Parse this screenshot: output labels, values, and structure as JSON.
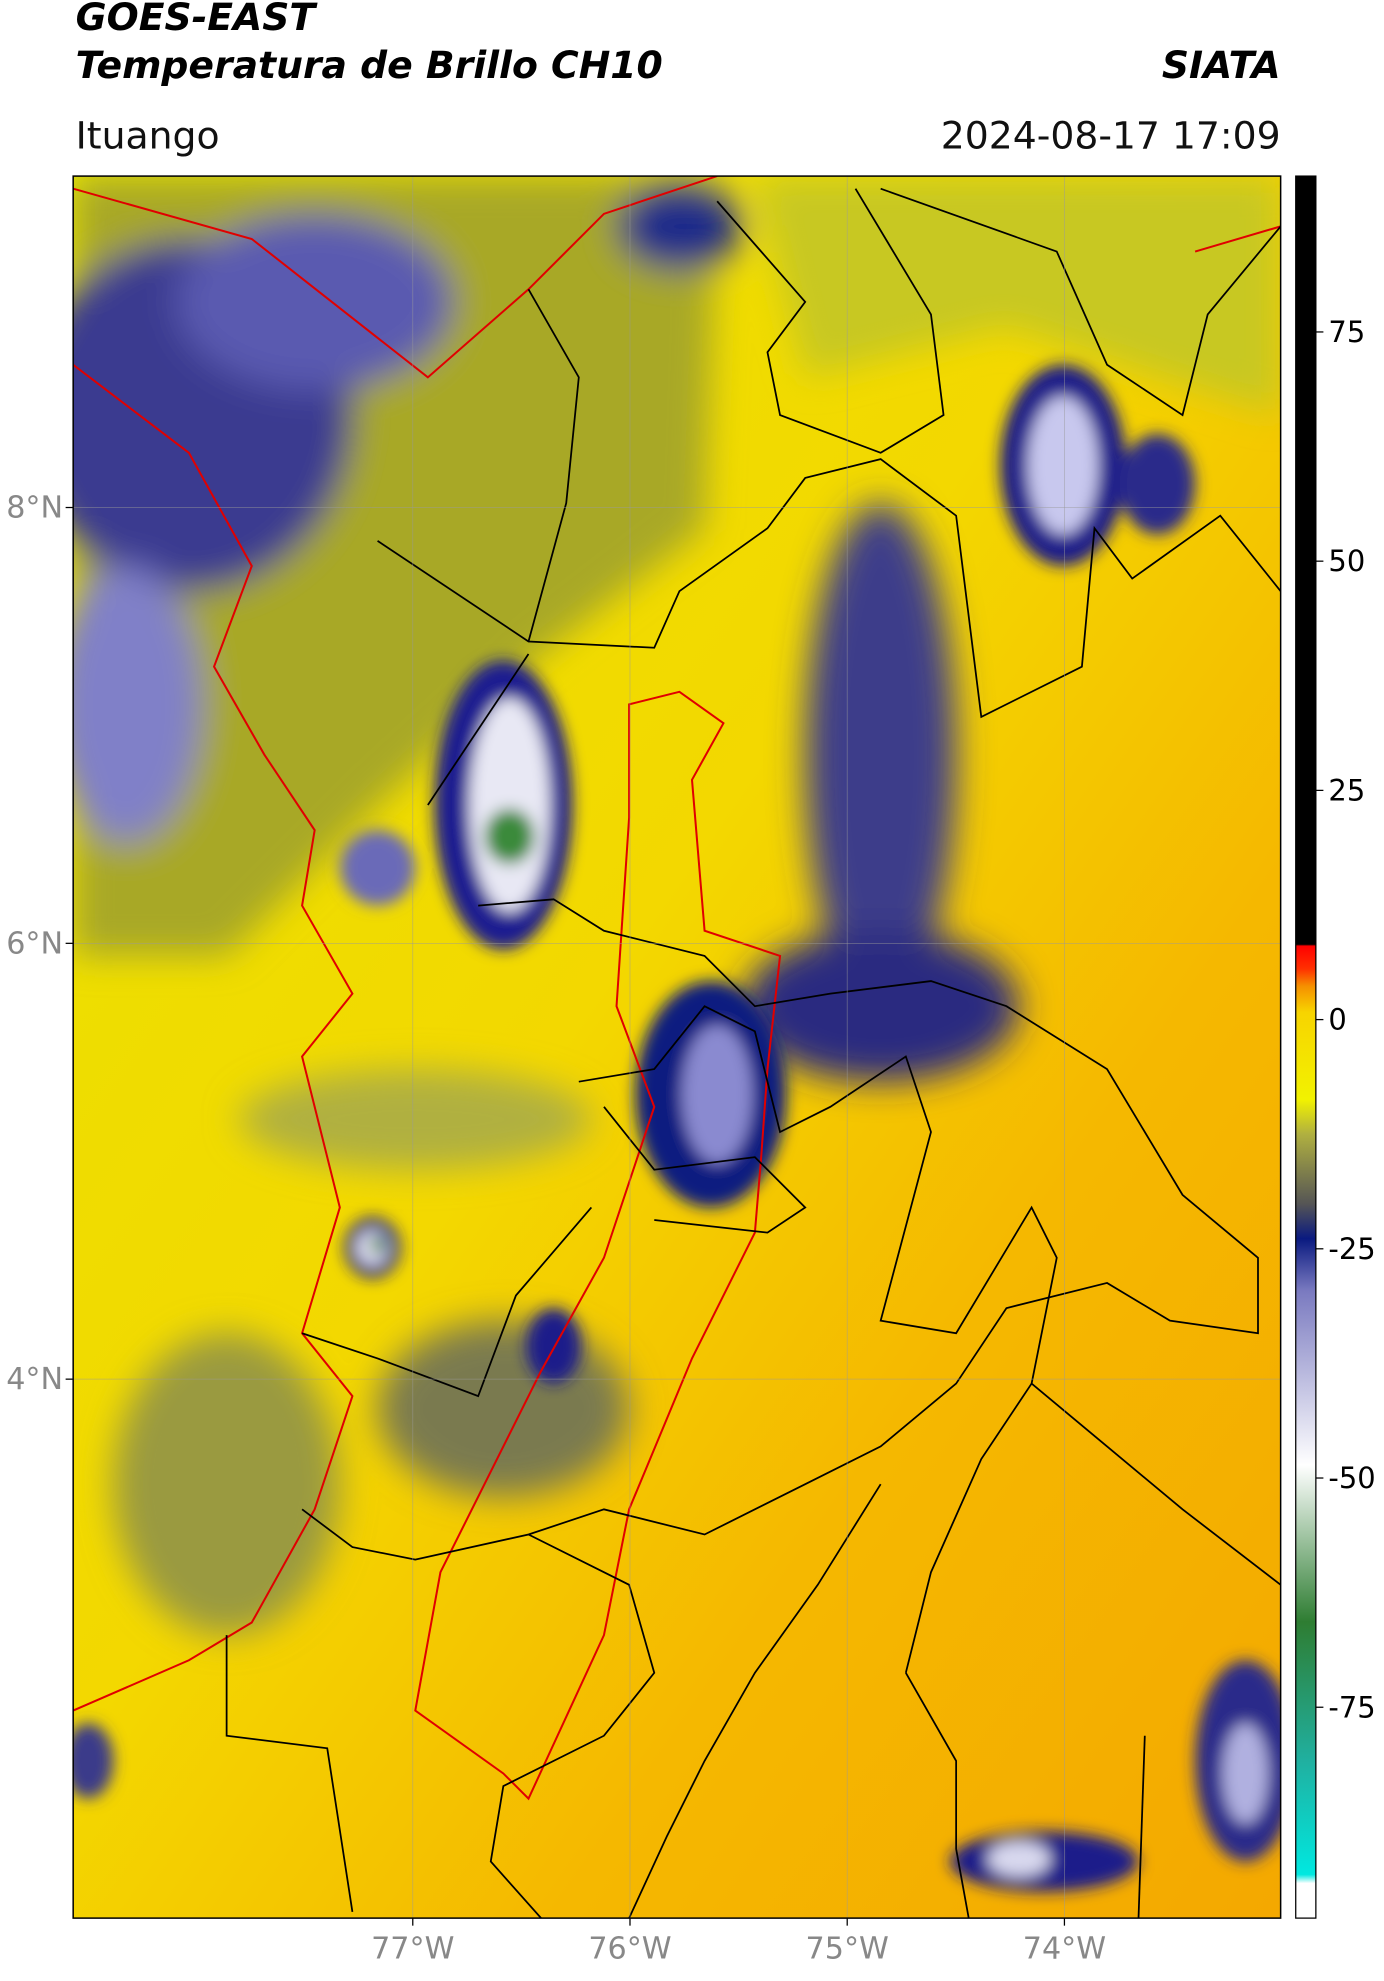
{
  "header": {
    "title": "GOES-EAST",
    "subtitle": "Temperatura de Brillo CH10",
    "agency": "SIATA",
    "location": "Ituango",
    "datetime": "2024-08-17 17:09"
  },
  "map": {
    "lat_ticks": [
      {
        "value": 8,
        "label": "8°N"
      },
      {
        "value": 6,
        "label": "6°N"
      },
      {
        "value": 4,
        "label": "4°N"
      }
    ],
    "lon_ticks": [
      {
        "value": -77,
        "label": "77°W"
      },
      {
        "value": -76,
        "label": "76°W"
      },
      {
        "value": -75,
        "label": "75°W"
      },
      {
        "value": -74,
        "label": "74°W"
      }
    ],
    "grid": true
  },
  "colorbar": {
    "lim": [
      -98,
      92
    ],
    "ticks": [
      75,
      50,
      25,
      0,
      -25,
      -50,
      -75
    ]
  }
}
